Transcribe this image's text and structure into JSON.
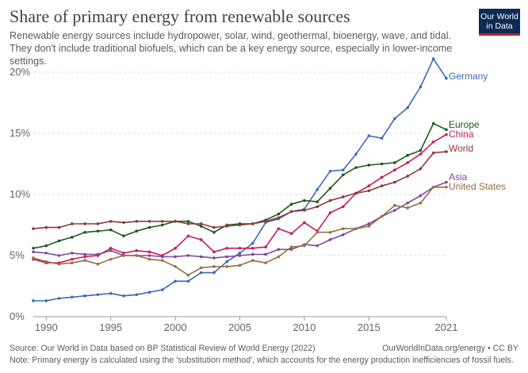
{
  "title": "Share of primary energy from renewable sources",
  "subtitle": "Renewable energy sources include hydropower, solar, wind, geothermal, bioenergy, wave, and tidal. They don't include traditional biofuels, which can be a key energy source, especially in lower-income settings.",
  "logo": {
    "line1": "Our World",
    "line2": "in Data",
    "bg": "#0b2b55",
    "accent": "#c1272d"
  },
  "footer": {
    "source": "Source: Our World in Data based on BP Statistical Review of World Energy (2022)",
    "note": "Note: Primary energy is calculated using the 'substitution method', which accounts for the energy production inefficiencies of fossil fuels.",
    "url": "OurWorldInData.org/energy • CC BY"
  },
  "chart_data": {
    "type": "line",
    "title": "Share of primary energy from renewable sources",
    "xlabel": "",
    "ylabel": "",
    "xlim": [
      1989,
      2021
    ],
    "ylim": [
      0,
      21
    ],
    "x_ticks": [
      1990,
      1995,
      2000,
      2005,
      2010,
      2015,
      2021
    ],
    "x_tick_labels": [
      "1990",
      "1995",
      "2000",
      "2005",
      "2010",
      "2015",
      "2021"
    ],
    "y_ticks": [
      0,
      5,
      10,
      15,
      20
    ],
    "y_tick_labels": [
      "0%",
      "5%",
      "10%",
      "15%",
      "20%"
    ],
    "grid": "horizontal-dashed",
    "legend": "labels at line ends (right)",
    "x": [
      1989,
      1990,
      1991,
      1992,
      1993,
      1994,
      1995,
      1996,
      1997,
      1998,
      1999,
      2000,
      2001,
      2002,
      2003,
      2004,
      2005,
      2006,
      2007,
      2008,
      2009,
      2010,
      2011,
      2012,
      2013,
      2014,
      2015,
      2016,
      2017,
      2018,
      2019,
      2020,
      2021
    ],
    "series": [
      {
        "name": "Germany",
        "color": "#3c6ab6",
        "values": [
          1.3,
          1.3,
          1.5,
          1.6,
          1.7,
          1.8,
          1.9,
          1.7,
          1.8,
          2.0,
          2.2,
          2.9,
          2.9,
          3.6,
          3.6,
          4.5,
          5.2,
          6.0,
          7.7,
          8.0,
          8.6,
          8.8,
          10.4,
          11.9,
          12.0,
          13.3,
          14.8,
          14.6,
          16.2,
          17.1,
          18.8,
          21.1,
          19.5
        ]
      },
      {
        "name": "Europe",
        "color": "#1d5a17",
        "values": [
          5.6,
          5.8,
          6.2,
          6.5,
          6.9,
          7.0,
          7.1,
          6.6,
          7.0,
          7.3,
          7.5,
          7.8,
          7.8,
          7.4,
          6.9,
          7.5,
          7.6,
          7.6,
          7.9,
          8.4,
          9.2,
          9.5,
          9.4,
          10.5,
          11.6,
          12.2,
          12.4,
          12.5,
          12.6,
          13.2,
          13.6,
          15.8,
          15.3
        ]
      },
      {
        "name": "China",
        "color": "#c7195f",
        "values": [
          4.7,
          4.4,
          4.4,
          4.7,
          4.9,
          5.0,
          5.6,
          5.2,
          5.4,
          5.3,
          5.0,
          5.6,
          6.6,
          6.3,
          5.3,
          5.6,
          5.6,
          5.6,
          5.7,
          7.2,
          6.8,
          7.7,
          7.0,
          8.5,
          9.0,
          10.1,
          10.7,
          11.4,
          12.0,
          12.6,
          13.3,
          14.3,
          14.9
        ]
      },
      {
        "name": "World",
        "color": "#8e3a3a",
        "values": [
          7.2,
          7.3,
          7.3,
          7.6,
          7.6,
          7.6,
          7.8,
          7.7,
          7.8,
          7.8,
          7.8,
          7.8,
          7.6,
          7.6,
          7.3,
          7.4,
          7.5,
          7.6,
          7.8,
          8.1,
          8.6,
          8.7,
          9.0,
          9.5,
          9.8,
          10.1,
          10.3,
          10.7,
          11.0,
          11.5,
          12.1,
          13.4,
          13.5
        ]
      },
      {
        "name": "Asia",
        "color": "#7c4a9d",
        "values": [
          5.3,
          5.2,
          5.0,
          5.2,
          5.1,
          5.1,
          5.4,
          5.0,
          5.0,
          5.0,
          4.9,
          4.9,
          5.0,
          4.9,
          4.8,
          4.9,
          5.0,
          5.1,
          5.1,
          5.5,
          5.5,
          5.9,
          5.8,
          6.3,
          6.7,
          7.2,
          7.6,
          8.2,
          8.7,
          9.3,
          9.9,
          10.6,
          11.0
        ]
      },
      {
        "name": "United States",
        "color": "#9a6e40",
        "values": [
          4.8,
          4.5,
          4.3,
          4.4,
          4.6,
          4.3,
          4.7,
          5.0,
          5.0,
          4.7,
          4.6,
          4.1,
          3.4,
          4.0,
          4.1,
          4.1,
          4.2,
          4.6,
          4.4,
          4.9,
          5.7,
          5.8,
          6.9,
          6.9,
          7.2,
          7.2,
          7.4,
          8.2,
          9.1,
          8.9,
          9.3,
          10.6,
          10.6
        ]
      }
    ]
  }
}
